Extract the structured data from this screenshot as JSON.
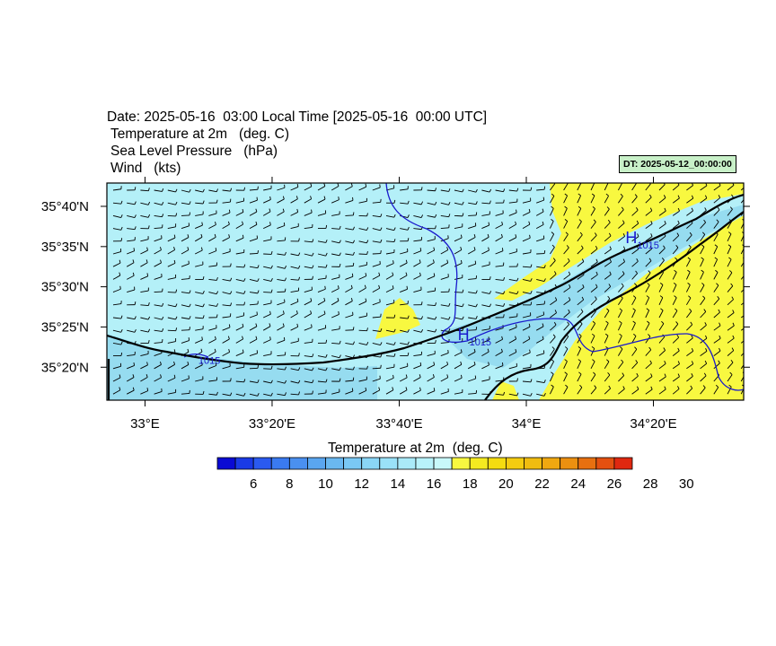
{
  "header": {
    "date_line": "Date: 2025-05-16  03:00 Local Time [2025-05-16  00:00 UTC]",
    "fields": [
      "Temperature at 2m   (deg. C)",
      "Sea Level Pressure   (hPa)",
      "Wind   (kts)"
    ],
    "dt_badge": "DT: 2025-05-12_00:00:00"
  },
  "map": {
    "lon_range": [
      32.9,
      34.57
    ],
    "lat_range": [
      35.265,
      35.715
    ],
    "lon_ticks": [
      {
        "value": 33.0,
        "label": "33°E"
      },
      {
        "value": 33.3333,
        "label": "33°20'E"
      },
      {
        "value": 33.6667,
        "label": "33°40'E"
      },
      {
        "value": 34.0,
        "label": "34°E"
      },
      {
        "value": 34.3333,
        "label": "34°20'E"
      }
    ],
    "lat_ticks": [
      {
        "value": 35.6667,
        "label": "35°40'N"
      },
      {
        "value": 35.5833,
        "label": "35°35'N"
      },
      {
        "value": 35.5,
        "label": "35°30'N"
      },
      {
        "value": 35.4167,
        "label": "35°25'N"
      },
      {
        "value": 35.3333,
        "label": "35°20'N"
      }
    ],
    "pressure_highs": [
      {
        "symbol": "H",
        "label": "1015",
        "lon": 34.26,
        "lat": 35.59
      },
      {
        "symbol": "H",
        "label": "1015",
        "lon": 33.82,
        "lat": 35.39
      }
    ],
    "isobar_labels": [
      {
        "label": "1015",
        "lon": 33.14,
        "lat": 35.34
      }
    ],
    "colors": {
      "sea_cool": "#b4f0f8",
      "coast_cool": "#96dcf0",
      "warm": "#f8f840",
      "isobar": "#1a1acd",
      "coastline": "#000000"
    }
  },
  "colorbar": {
    "title": "Temperature at 2m  (deg. C)",
    "colors": [
      "#0a0ad4",
      "#1a3ae6",
      "#2a5af0",
      "#3a7af0",
      "#4a90f0",
      "#5aa6f0",
      "#6ab8f0",
      "#7ac8f4",
      "#8ad6f6",
      "#9ae2f8",
      "#aaeaf8",
      "#b8f2fa",
      "#c8f8fa",
      "#f8f840",
      "#f4ea20",
      "#f4dc10",
      "#f4cc10",
      "#f0bc10",
      "#f0a810",
      "#ec9010",
      "#e87010",
      "#e45010",
      "#e02810"
    ],
    "ticks": [
      "6",
      "8",
      "10",
      "12",
      "14",
      "16",
      "18",
      "20",
      "22",
      "24",
      "26",
      "28",
      "30"
    ]
  }
}
